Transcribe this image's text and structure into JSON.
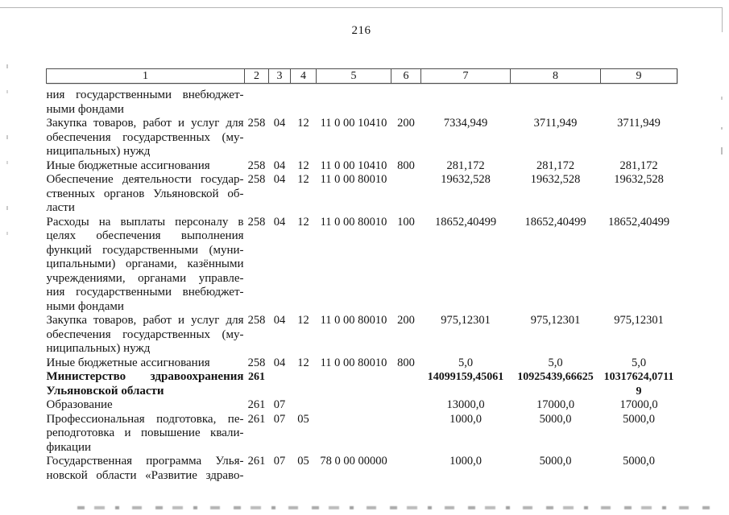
{
  "page": {
    "number": "216"
  },
  "table": {
    "headers": [
      "1",
      "2",
      "3",
      "4",
      "5",
      "6",
      "7",
      "8",
      "9"
    ],
    "rows": [
      {
        "desc": [
          "ния государственными внебюджет-",
          "ными фондами"
        ],
        "c2": "",
        "c3": "",
        "c4": "",
        "c5": "",
        "c6": "",
        "c7": "",
        "c8": "",
        "c9": ""
      },
      {
        "desc": [
          "Закупка товаров, работ и услуг для",
          "обеспечения государственных (му-",
          "ниципальных) нужд"
        ],
        "c2": "258",
        "c3": "04",
        "c4": "12",
        "c5": "11 0 00 10410",
        "c6": "200",
        "c7": "7334,949",
        "c8": "3711,949",
        "c9": "3711,949"
      },
      {
        "desc": [
          "Иные бюджетные ассигнования"
        ],
        "c2": "258",
        "c3": "04",
        "c4": "12",
        "c5": "11 0 00 10410",
        "c6": "800",
        "c7": "281,172",
        "c8": "281,172",
        "c9": "281,172"
      },
      {
        "desc": [
          "Обеспечение деятельности государ-",
          "ственных органов Ульяновской об-",
          "ласти"
        ],
        "c2": "258",
        "c3": "04",
        "c4": "12",
        "c5": "11 0 00 80010",
        "c6": "",
        "c7": "19632,528",
        "c8": "19632,528",
        "c9": "19632,528"
      },
      {
        "desc": [
          "Расходы на выплаты персоналу в",
          "целях обеспечения выполнения",
          "функций государственными (муни-",
          "ципальными) органами, казёнными",
          "учреждениями, органами управле-",
          "ния государственными внебюджет-",
          "ными фондами"
        ],
        "c2": "258",
        "c3": "04",
        "c4": "12",
        "c5": "11 0 00 80010",
        "c6": "100",
        "c7": "18652,40499",
        "c8": "18652,40499",
        "c9": "18652,40499"
      },
      {
        "desc": [
          "Закупка товаров, работ и услуг для",
          "обеспечения государственных (му-",
          "ниципальных) нужд"
        ],
        "c2": "258",
        "c3": "04",
        "c4": "12",
        "c5": "11 0 00 80010",
        "c6": "200",
        "c7": "975,12301",
        "c8": "975,12301",
        "c9": "975,12301"
      },
      {
        "desc": [
          "Иные бюджетные ассигнования"
        ],
        "c2": "258",
        "c3": "04",
        "c4": "12",
        "c5": "11 0 00 80010",
        "c6": "800",
        "c7": "5,0",
        "c8": "5,0",
        "c9": "5,0"
      },
      {
        "bold": true,
        "desc": [
          "Министерство здравоохранения",
          "Ульяновской области"
        ],
        "c2": "261",
        "c3": "",
        "c4": "",
        "c5": "",
        "c6": "",
        "c7": "14099159,45061",
        "c8": "10925439,66625",
        "c9": "10317624,0711\n9"
      },
      {
        "desc": [
          "Образование"
        ],
        "c2": "261",
        "c3": "07",
        "c4": "",
        "c5": "",
        "c6": "",
        "c7": "13000,0",
        "c8": "17000,0",
        "c9": "17000,0"
      },
      {
        "desc": [
          "Профессиональная подготовка, пе-",
          "реподготовка и повышение квали-",
          "фикации"
        ],
        "c2": "261",
        "c3": "07",
        "c4": "05",
        "c5": "",
        "c6": "",
        "c7": "1000,0",
        "c8": "5000,0",
        "c9": "5000,0"
      },
      {
        "cont": true,
        "desc": [
          "Государственная программа Улья-",
          "новской области «Развитие здраво-"
        ],
        "c2": "261",
        "c3": "07",
        "c4": "05",
        "c5": "78 0 00 00000",
        "c6": "",
        "c7": "1000,0",
        "c8": "5000,0",
        "c9": "5000,0"
      }
    ]
  }
}
